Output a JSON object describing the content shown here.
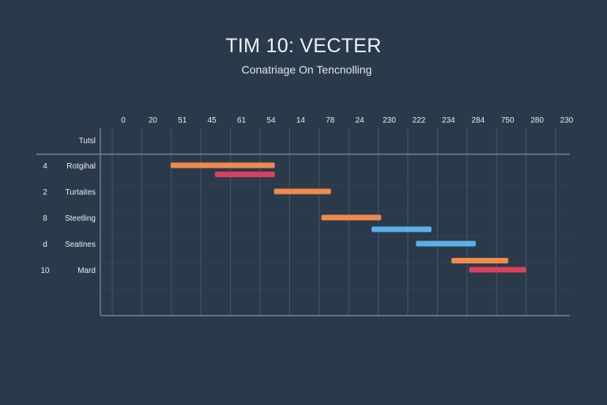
{
  "chart_data": {
    "type": "gantt",
    "title": "TIM 10: VECTER",
    "subtitle": "Conatriage On Tencnolling",
    "x_ticks": [
      "0",
      "20",
      "51",
      "45",
      "61",
      "54",
      "14",
      "78",
      "24",
      "230",
      "222",
      "234",
      "284",
      "750",
      "280",
      "230"
    ],
    "header_label": "Tutsl",
    "rows": [
      {
        "number": "4",
        "label": "Rotgihal"
      },
      {
        "number": "2",
        "label": "Turtaites"
      },
      {
        "number": "8",
        "label": "Steetling"
      },
      {
        "number": "d",
        "label": "Seatines"
      },
      {
        "number": "10",
        "label": "Mard"
      }
    ],
    "tasks": [
      {
        "start": 2.0,
        "end": 5.5,
        "lane": 0.0,
        "color": "#f08a4b"
      },
      {
        "start": 3.5,
        "end": 5.5,
        "lane": 0.35,
        "color": "#d9405e"
      },
      {
        "start": 5.5,
        "end": 7.4,
        "lane": 1.0,
        "color": "#f08a4b"
      },
      {
        "start": 7.1,
        "end": 9.1,
        "lane": 2.0,
        "color": "#f08a4b"
      },
      {
        "start": 8.8,
        "end": 10.8,
        "lane": 2.45,
        "color": "#5ab0ea"
      },
      {
        "start": 10.3,
        "end": 12.3,
        "lane": 3.0,
        "color": "#5ab0ea"
      },
      {
        "start": 11.5,
        "end": 13.4,
        "lane": 3.65,
        "color": "#f08a4b"
      },
      {
        "start": 12.1,
        "end": 14.0,
        "lane": 4.0,
        "color": "#d9405e"
      }
    ],
    "colors": {
      "background": "#2b3a4b",
      "grid": "#46576a",
      "axis": "#7f8fa0",
      "text": "#e6ebf0"
    },
    "grid": true
  }
}
